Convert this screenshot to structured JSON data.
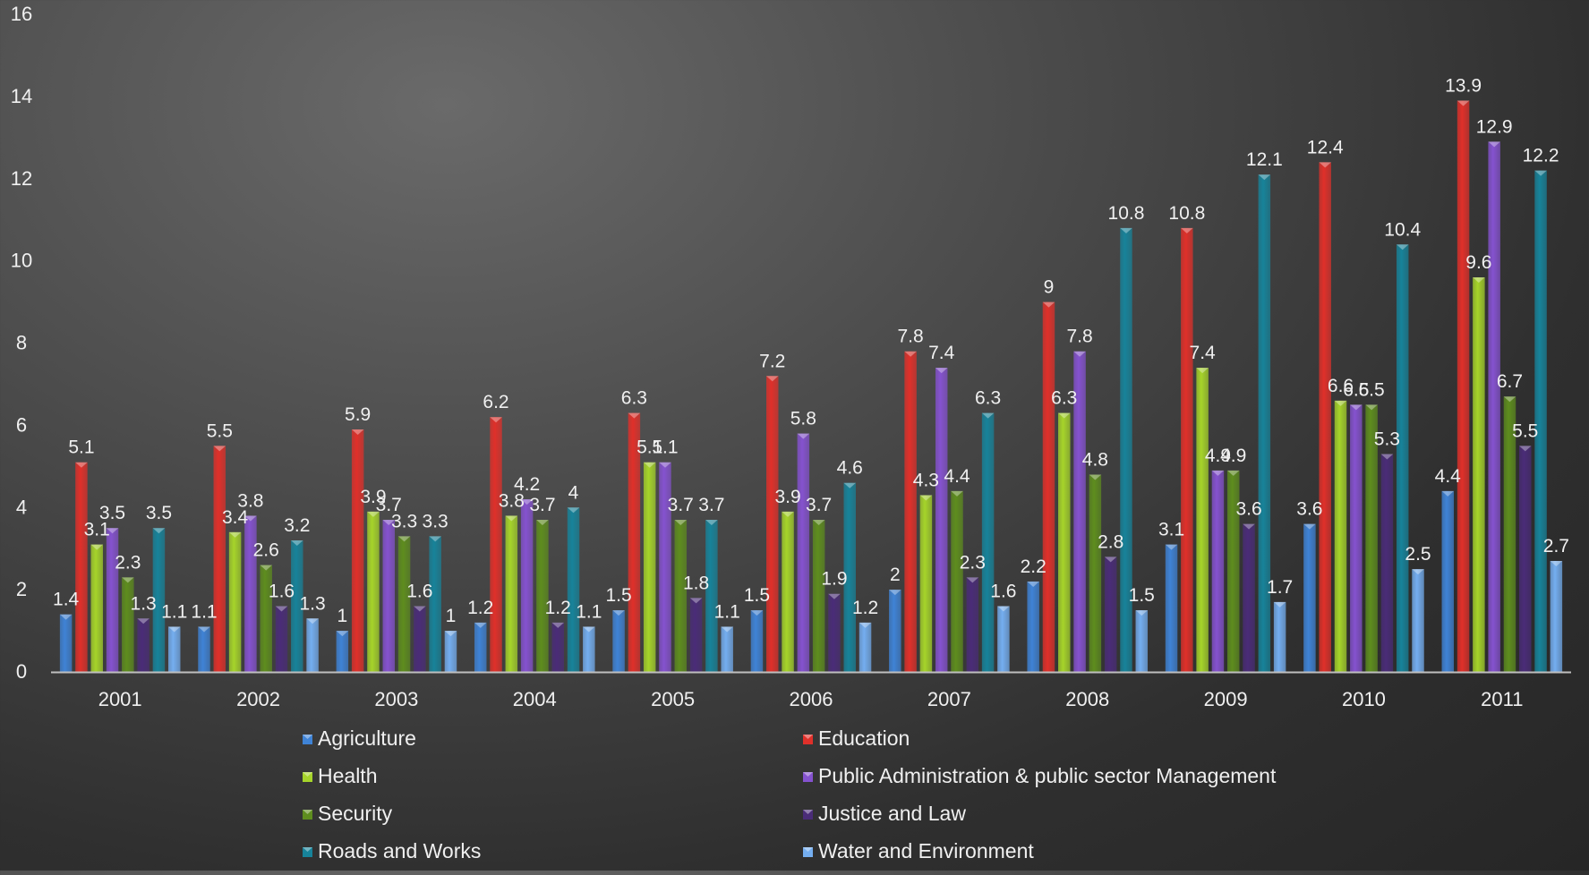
{
  "chart_data": {
    "type": "bar",
    "categories": [
      "2001",
      "2002",
      "2003",
      "2004",
      "2005",
      "2006",
      "2007",
      "2008",
      "2009",
      "2010",
      "2011"
    ],
    "ylim": [
      0,
      16
    ],
    "yticks": [
      0,
      2,
      4,
      6,
      8,
      10,
      12,
      14,
      16
    ],
    "grid": false,
    "legend_position": "bottom",
    "series": [
      {
        "name": "Agriculture",
        "color": "#3f83d6",
        "values": [
          1.4,
          1.1,
          1,
          1.2,
          1.5,
          1.5,
          2,
          2.2,
          3.1,
          3.6,
          4.4
        ]
      },
      {
        "name": "Education",
        "color": "#e0302a",
        "values": [
          5.1,
          5.5,
          5.9,
          6.2,
          6.3,
          7.2,
          7.8,
          9,
          10.8,
          12.4,
          13.9
        ]
      },
      {
        "name": "Health",
        "color": "#a6d42a",
        "values": [
          3.1,
          3.4,
          3.9,
          3.8,
          5.1,
          3.9,
          4.3,
          6.3,
          7.4,
          6.6,
          9.6
        ]
      },
      {
        "name": "Public Administration & public sector Management",
        "color": "#8552cf",
        "values": [
          3.5,
          3.8,
          3.7,
          4.2,
          5.1,
          5.8,
          7.4,
          7.8,
          4.9,
          6.5,
          12.9
        ]
      },
      {
        "name": "Security",
        "color": "#5e8d1e",
        "values": [
          2.3,
          2.6,
          3.3,
          3.7,
          3.7,
          3.7,
          4.4,
          4.8,
          4.9,
          6.5,
          6.7
        ]
      },
      {
        "name": "Justice and Law",
        "color": "#4a2c78",
        "values": [
          1.3,
          1.6,
          1.6,
          1.2,
          1.8,
          1.9,
          2.3,
          2.8,
          3.6,
          5.3,
          5.5
        ]
      },
      {
        "name": "Roads and Works",
        "color": "#17839a",
        "values": [
          3.5,
          3.2,
          3.3,
          4,
          3.7,
          4.6,
          6.3,
          10.8,
          12.1,
          10.4,
          12.2
        ]
      },
      {
        "name": "Water and Environment",
        "color": "#74aef0",
        "values": [
          1.1,
          1.3,
          1,
          1.1,
          1.1,
          1.2,
          1.6,
          1.5,
          1.7,
          2.5,
          2.7
        ]
      }
    ]
  }
}
